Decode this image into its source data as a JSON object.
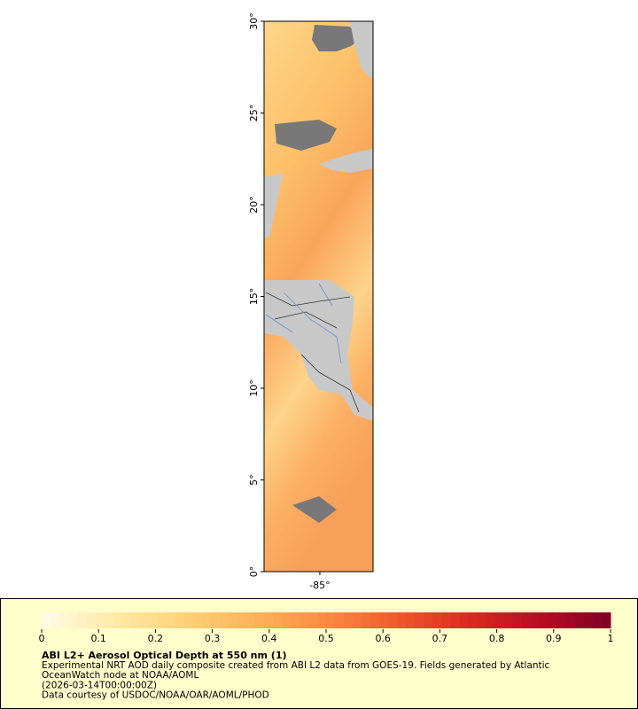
{
  "map": {
    "lat_range": [
      0,
      30
    ],
    "lon_range": [
      -88.04,
      -82.1
    ],
    "lat_ticks": [
      {
        "value": 0,
        "label": "0°"
      },
      {
        "value": 5,
        "label": "5°"
      },
      {
        "value": 10,
        "label": "10°"
      },
      {
        "value": 15,
        "label": "15°"
      },
      {
        "value": 20,
        "label": "20°"
      },
      {
        "value": 25,
        "label": "25°"
      },
      {
        "value": 30,
        "label": "30°"
      }
    ],
    "lon_ticks": [
      {
        "value": -85,
        "label": "-85°"
      }
    ]
  },
  "legend": {
    "range": [
      0,
      1
    ],
    "ticks": [
      0,
      0.1,
      0.2,
      0.3,
      0.4,
      0.5,
      0.6,
      0.7,
      0.8,
      0.9,
      1
    ],
    "colors": [
      "#fffbe8",
      "#ffeaa8",
      "#fed277",
      "#fdb25a",
      "#f98c3f",
      "#ef5a2d",
      "#db2a1f",
      "#b70d23",
      "#800026"
    ],
    "title": "ABI L2+ Aerosol Optical Depth at 550 nm (1)",
    "lines": [
      "Experimental NRT AOD daily composite created from ABI L2 data from GOES-19. Fields generated by Atlantic",
      "OceanWatch node at NOAA/AOML",
      "(2026-03-14T00:00:00Z)",
      "Data courtesy of USDOC/NOAA/OAR/AOML/PHOD"
    ]
  }
}
